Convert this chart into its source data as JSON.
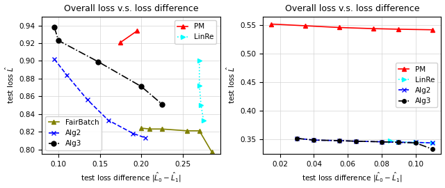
{
  "title": "Overall loss v.s. loss difference",
  "xlabel": "test loss difference $|\\hat{L}_0 - \\hat{L}_1|$",
  "ylabel": "test loss $\\hat{L}$",
  "left": {
    "PM": {
      "x": [
        0.195,
        0.175
      ],
      "y": [
        0.934,
        0.921
      ],
      "color": "red",
      "linestyle": "-",
      "marker": "^",
      "markersize": 5,
      "label": "PM"
    },
    "LinRe": {
      "x": [
        0.27,
        0.27,
        0.272,
        0.275
      ],
      "y": [
        0.9,
        0.872,
        0.85,
        0.833
      ],
      "color": "cyan",
      "linestyle": ":",
      "marker": ">",
      "markersize": 5,
      "label": "LinRe"
    },
    "FairBatch": {
      "x": [
        0.2,
        0.21,
        0.225,
        0.255,
        0.27,
        0.285
      ],
      "y": [
        0.824,
        0.823,
        0.823,
        0.821,
        0.821,
        0.797
      ],
      "color": "#808000",
      "linestyle": "-",
      "marker": "^",
      "markersize": 5,
      "label": "FairBatch"
    },
    "Alg2": {
      "x": [
        0.095,
        0.11,
        0.135,
        0.16,
        0.19,
        0.205
      ],
      "y": [
        0.902,
        0.884,
        0.856,
        0.833,
        0.818,
        0.813
      ],
      "color": "blue",
      "linestyle": "--",
      "marker": "x",
      "markersize": 5,
      "label": "Alg2"
    },
    "Alg3": {
      "x": [
        0.095,
        0.1,
        0.148,
        0.2,
        0.225
      ],
      "y": [
        0.938,
        0.923,
        0.899,
        0.871,
        0.851
      ],
      "color": "black",
      "linestyle": "-.",
      "marker": "o",
      "markersize": 5,
      "label": "Alg3"
    },
    "xlim": [
      0.08,
      0.295
    ],
    "ylim": [
      0.795,
      0.95
    ],
    "xticks": [
      0.1,
      0.15,
      0.2,
      0.25
    ],
    "yticks": [
      0.8,
      0.82,
      0.84,
      0.86,
      0.88,
      0.9,
      0.92,
      0.94
    ],
    "legend_upper": [
      "PM",
      "LinRe"
    ],
    "legend_lower": [
      "FairBatch",
      "Alg2",
      "Alg3"
    ]
  },
  "right": {
    "PM": {
      "x": [
        0.015,
        0.035,
        0.055,
        0.075,
        0.09,
        0.11
      ],
      "y": [
        0.552,
        0.549,
        0.546,
        0.544,
        0.543,
        0.542
      ],
      "color": "red",
      "linestyle": "-",
      "marker": "^",
      "markersize": 4,
      "label": "PM"
    },
    "LinRe": {
      "x": [
        0.085,
        0.09,
        0.1,
        0.11
      ],
      "y": [
        0.348,
        0.346,
        0.345,
        0.344
      ],
      "color": "cyan",
      "linestyle": ":",
      "marker": ">",
      "markersize": 4,
      "label": "LinRe"
    },
    "Alg2": {
      "x": [
        0.03,
        0.04,
        0.055,
        0.065,
        0.08,
        0.09,
        0.1,
        0.11
      ],
      "y": [
        0.352,
        0.349,
        0.348,
        0.347,
        0.346,
        0.345,
        0.345,
        0.344
      ],
      "color": "blue",
      "linestyle": "--",
      "marker": "x",
      "markersize": 4,
      "label": "Alg2"
    },
    "Alg3": {
      "x": [
        0.03,
        0.04,
        0.055,
        0.065,
        0.08,
        0.09,
        0.1,
        0.11
      ],
      "y": [
        0.352,
        0.349,
        0.348,
        0.347,
        0.346,
        0.345,
        0.344,
        0.333
      ],
      "color": "black",
      "linestyle": "-.",
      "marker": "o",
      "markersize": 4,
      "label": "Alg3"
    },
    "xlim": [
      0.01,
      0.115
    ],
    "ylim": [
      0.325,
      0.565
    ],
    "xticks": [
      0.02,
      0.04,
      0.06,
      0.08,
      0.1
    ],
    "yticks": [
      0.35,
      0.4,
      0.45,
      0.5,
      0.55
    ],
    "legend_all": [
      "PM",
      "LinRe",
      "Alg2",
      "Alg3"
    ]
  }
}
